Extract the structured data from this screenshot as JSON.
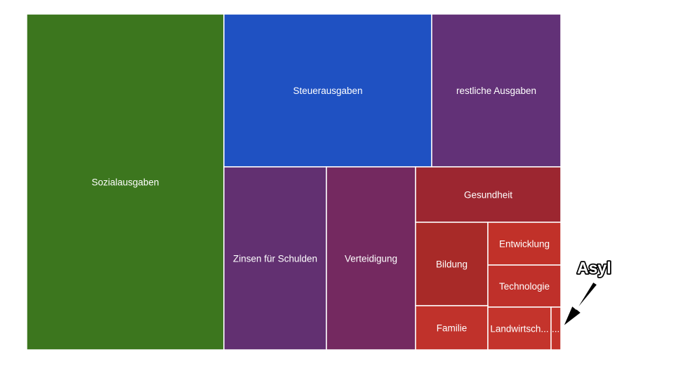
{
  "chart_data": {
    "type": "treemap",
    "tiles": [
      {
        "label": "Sozialausgaben",
        "color": "#3c761e"
      },
      {
        "label": "Steuerausgaben",
        "color": "#1f51c2"
      },
      {
        "label": "restliche Ausgaben",
        "color": "#623177"
      },
      {
        "label": "Zinsen für Schulden",
        "color": "#623071"
      },
      {
        "label": "Verteidigung",
        "color": "#742960"
      },
      {
        "label": "Gesundheit",
        "color": "#9c2630"
      },
      {
        "label": "Bildung",
        "color": "#a82a28"
      },
      {
        "label": "Entwicklung",
        "color": "#c13129"
      },
      {
        "label": "Technologie",
        "color": "#bf302a"
      },
      {
        "label": "Familie",
        "color": "#c0322b"
      },
      {
        "label": "Landwirtsch...",
        "color": "#c4342c"
      },
      {
        "label": "...",
        "color": "#c4332b"
      }
    ],
    "annotation": {
      "text": "Asyl",
      "target": "..."
    }
  }
}
